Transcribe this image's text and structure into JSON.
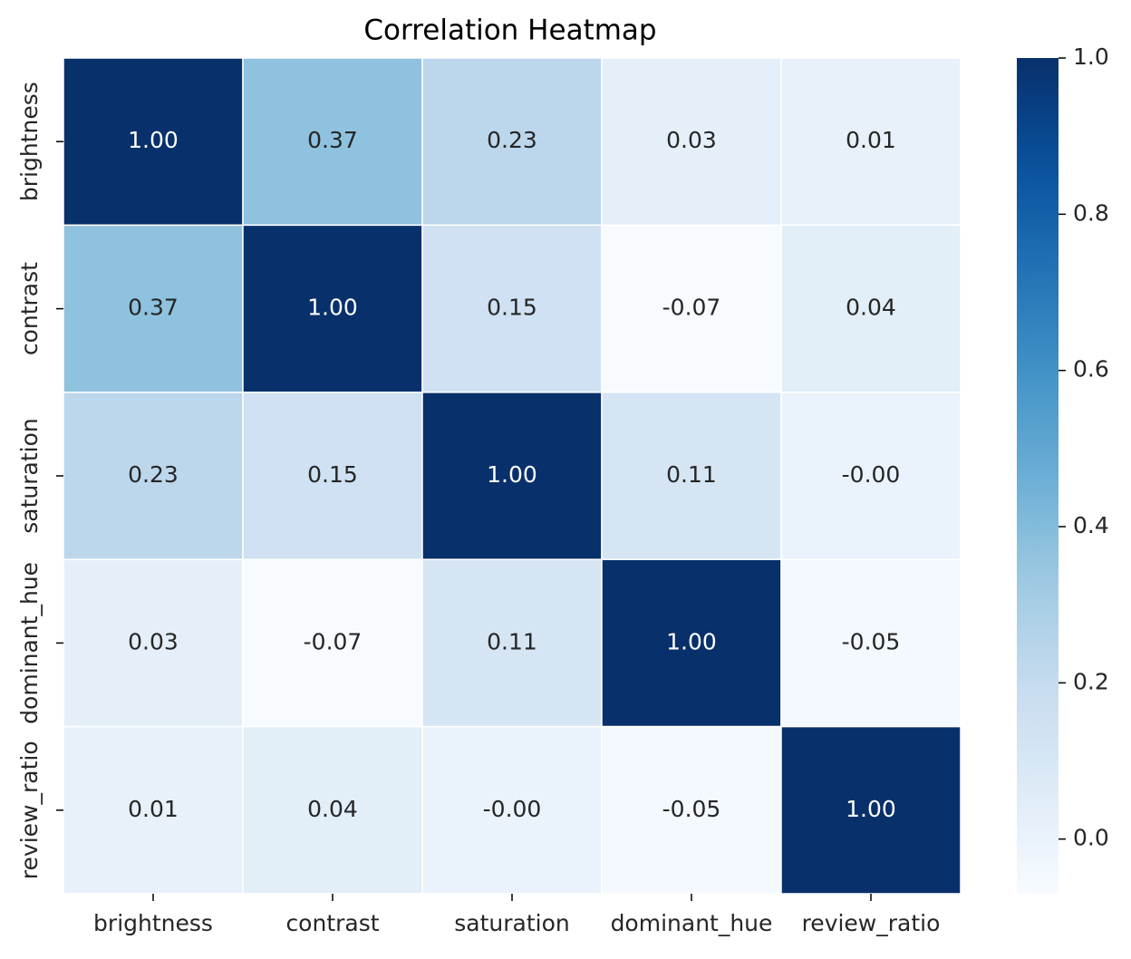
{
  "chart_data": {
    "type": "heatmap",
    "title": "Correlation Heatmap",
    "xlabel": "",
    "ylabel": "",
    "x_categories": [
      "brightness",
      "contrast",
      "saturation",
      "dominant_hue",
      "review_ratio"
    ],
    "y_categories": [
      "brightness",
      "contrast",
      "saturation",
      "dominant_hue",
      "review_ratio"
    ],
    "values": [
      [
        1.0,
        0.37,
        0.23,
        0.03,
        0.01
      ],
      [
        0.37,
        1.0,
        0.15,
        -0.07,
        0.04
      ],
      [
        0.23,
        0.15,
        1.0,
        0.11,
        -0.0
      ],
      [
        0.03,
        -0.07,
        0.11,
        1.0,
        -0.05
      ],
      [
        0.01,
        0.04,
        -0.0,
        -0.05,
        1.0
      ]
    ],
    "cell_labels": [
      [
        "1.00",
        "0.37",
        "0.23",
        "0.03",
        "0.01"
      ],
      [
        "0.37",
        "1.00",
        "0.15",
        "-0.07",
        "0.04"
      ],
      [
        "0.23",
        "0.15",
        "1.00",
        "0.11",
        "-0.00"
      ],
      [
        "0.03",
        "-0.07",
        "0.11",
        "1.00",
        "-0.05"
      ],
      [
        "0.01",
        "0.04",
        "-0.00",
        "-0.05",
        "1.00"
      ]
    ],
    "colormap": "Blues",
    "vmin": -0.07,
    "vmax": 1.0,
    "colorbar": {
      "ticks": [
        0.0,
        0.2,
        0.4,
        0.6,
        0.8,
        1.0
      ],
      "tick_labels": [
        "0.0",
        "0.2",
        "0.4",
        "0.6",
        "0.8",
        "1.0"
      ]
    },
    "grid": false,
    "colors": {
      "cell_border": "#ffffff",
      "text_dark": "#262626",
      "text_light": "#ffffff",
      "axis": "#000000"
    }
  }
}
